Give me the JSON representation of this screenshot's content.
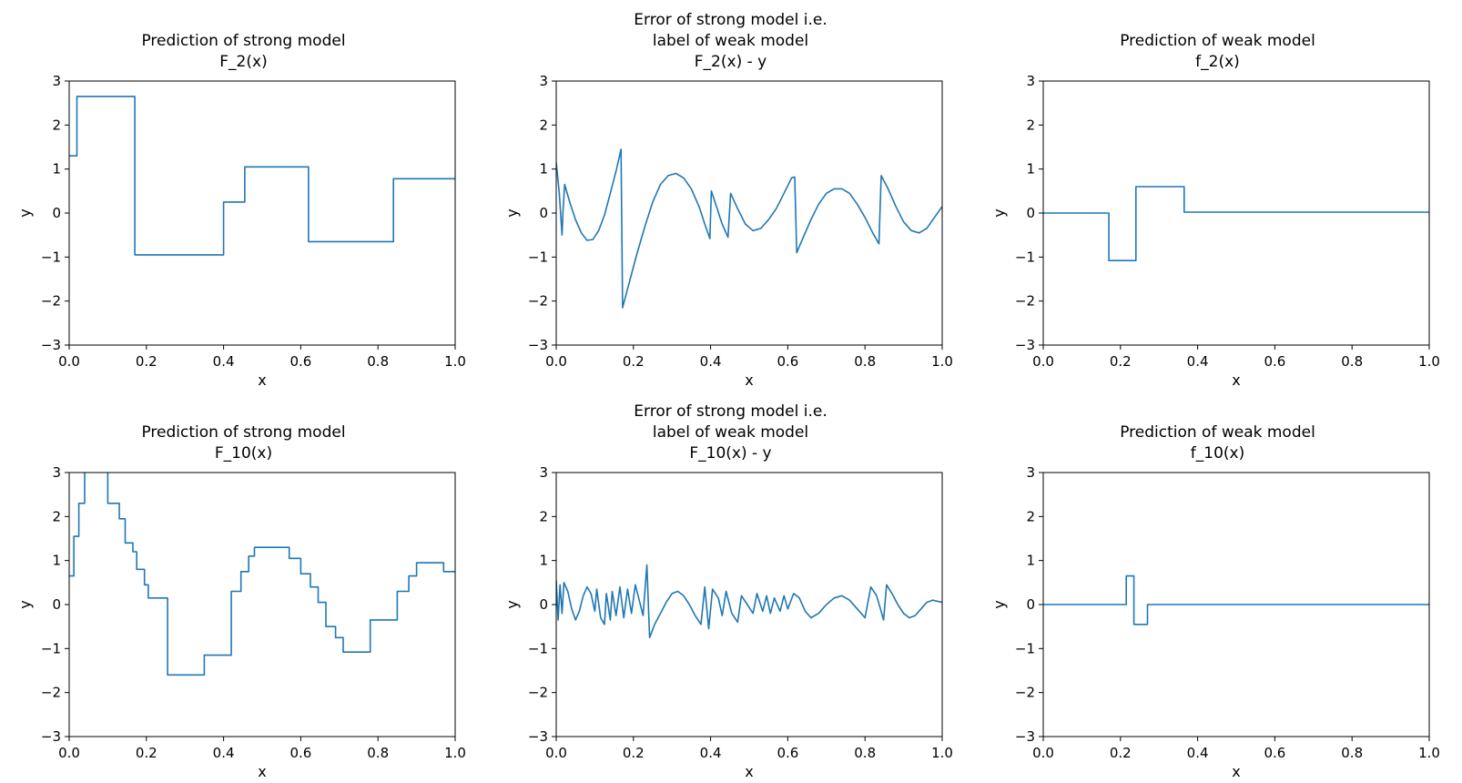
{
  "figure": {
    "background": "#ffffff",
    "line_color": "#1f77b4",
    "axis_color": "#000000"
  },
  "chart_data": [
    {
      "id": "strong-f2",
      "type": "step",
      "title_lines": [
        "Prediction of strong model",
        "F_2(x)"
      ],
      "xlabel": "x",
      "ylabel": "y",
      "xlim": [
        0.0,
        1.0
      ],
      "ylim": [
        -3,
        3
      ],
      "xticks": [
        0.0,
        0.2,
        0.4,
        0.6,
        0.8,
        1.0
      ],
      "yticks": [
        -3,
        -2,
        -1,
        0,
        1,
        2,
        3
      ],
      "segments": [
        [
          0.0,
          0.02,
          1.3
        ],
        [
          0.02,
          0.17,
          2.65
        ],
        [
          0.17,
          0.4,
          -0.95
        ],
        [
          0.4,
          0.455,
          0.25
        ],
        [
          0.455,
          0.62,
          1.05
        ],
        [
          0.62,
          0.84,
          -0.65
        ],
        [
          0.84,
          1.0,
          0.78
        ]
      ]
    },
    {
      "id": "error-f2",
      "type": "line",
      "title_lines": [
        "Error of strong model i.e.",
        "label of weak model",
        "F_2(x) - y"
      ],
      "xlabel": "x",
      "ylabel": "y",
      "xlim": [
        0.0,
        1.0
      ],
      "ylim": [
        -3,
        3
      ],
      "xticks": [
        0.0,
        0.2,
        0.4,
        0.6,
        0.8,
        1.0
      ],
      "yticks": [
        -3,
        -2,
        -1,
        0,
        1,
        2,
        3
      ],
      "points": [
        [
          0.0,
          1.15
        ],
        [
          0.008,
          0.45
        ],
        [
          0.015,
          -0.5
        ],
        [
          0.018,
          0.1
        ],
        [
          0.022,
          0.65
        ],
        [
          0.035,
          0.25
        ],
        [
          0.05,
          -0.15
        ],
        [
          0.065,
          -0.45
        ],
        [
          0.08,
          -0.62
        ],
        [
          0.095,
          -0.6
        ],
        [
          0.11,
          -0.4
        ],
        [
          0.125,
          -0.05
        ],
        [
          0.14,
          0.45
        ],
        [
          0.155,
          0.95
        ],
        [
          0.168,
          1.45
        ],
        [
          0.172,
          -2.15
        ],
        [
          0.19,
          -1.55
        ],
        [
          0.21,
          -0.9
        ],
        [
          0.23,
          -0.3
        ],
        [
          0.25,
          0.25
        ],
        [
          0.27,
          0.65
        ],
        [
          0.29,
          0.85
        ],
        [
          0.31,
          0.9
        ],
        [
          0.33,
          0.8
        ],
        [
          0.35,
          0.55
        ],
        [
          0.37,
          0.15
        ],
        [
          0.385,
          -0.25
        ],
        [
          0.398,
          -0.58
        ],
        [
          0.402,
          0.5
        ],
        [
          0.415,
          0.15
        ],
        [
          0.43,
          -0.25
        ],
        [
          0.445,
          -0.55
        ],
        [
          0.452,
          0.45
        ],
        [
          0.47,
          0.1
        ],
        [
          0.49,
          -0.25
        ],
        [
          0.51,
          -0.4
        ],
        [
          0.53,
          -0.35
        ],
        [
          0.55,
          -0.15
        ],
        [
          0.57,
          0.1
        ],
        [
          0.59,
          0.45
        ],
        [
          0.61,
          0.8
        ],
        [
          0.618,
          0.82
        ],
        [
          0.623,
          -0.9
        ],
        [
          0.64,
          -0.55
        ],
        [
          0.66,
          -0.15
        ],
        [
          0.68,
          0.2
        ],
        [
          0.7,
          0.45
        ],
        [
          0.72,
          0.55
        ],
        [
          0.74,
          0.55
        ],
        [
          0.76,
          0.45
        ],
        [
          0.78,
          0.2
        ],
        [
          0.8,
          -0.1
        ],
        [
          0.82,
          -0.45
        ],
        [
          0.836,
          -0.7
        ],
        [
          0.842,
          0.85
        ],
        [
          0.86,
          0.55
        ],
        [
          0.88,
          0.15
        ],
        [
          0.9,
          -0.2
        ],
        [
          0.92,
          -0.4
        ],
        [
          0.94,
          -0.45
        ],
        [
          0.96,
          -0.35
        ],
        [
          0.98,
          -0.1
        ],
        [
          1.0,
          0.15
        ]
      ]
    },
    {
      "id": "weak-f2",
      "type": "step",
      "title_lines": [
        "Prediction of weak model",
        "f_2(x)"
      ],
      "xlabel": "x",
      "ylabel": "y",
      "xlim": [
        0.0,
        1.0
      ],
      "ylim": [
        -3,
        3
      ],
      "xticks": [
        0.0,
        0.2,
        0.4,
        0.6,
        0.8,
        1.0
      ],
      "yticks": [
        -3,
        -2,
        -1,
        0,
        1,
        2,
        3
      ],
      "segments": [
        [
          0.0,
          0.17,
          0.0
        ],
        [
          0.17,
          0.24,
          -1.08
        ],
        [
          0.24,
          0.365,
          0.6
        ],
        [
          0.365,
          1.0,
          0.02
        ]
      ]
    },
    {
      "id": "strong-f10",
      "type": "step",
      "title_lines": [
        "Prediction of strong model",
        "F_10(x)"
      ],
      "xlabel": "x",
      "ylabel": "y",
      "xlim": [
        0.0,
        1.0
      ],
      "ylim": [
        -3,
        3
      ],
      "xticks": [
        0.0,
        0.2,
        0.4,
        0.6,
        0.8,
        1.0
      ],
      "yticks": [
        -3,
        -2,
        -1,
        0,
        1,
        2,
        3
      ],
      "segments": [
        [
          0.0,
          0.012,
          0.65
        ],
        [
          0.012,
          0.025,
          1.55
        ],
        [
          0.025,
          0.04,
          2.3
        ],
        [
          0.04,
          0.1,
          3.06
        ],
        [
          0.1,
          0.13,
          2.3
        ],
        [
          0.13,
          0.145,
          1.95
        ],
        [
          0.145,
          0.165,
          1.4
        ],
        [
          0.165,
          0.175,
          1.2
        ],
        [
          0.175,
          0.195,
          0.8
        ],
        [
          0.195,
          0.205,
          0.45
        ],
        [
          0.205,
          0.255,
          0.15
        ],
        [
          0.255,
          0.35,
          -1.6
        ],
        [
          0.35,
          0.42,
          -1.15
        ],
        [
          0.42,
          0.445,
          0.3
        ],
        [
          0.445,
          0.465,
          0.75
        ],
        [
          0.465,
          0.48,
          1.1
        ],
        [
          0.48,
          0.57,
          1.3
        ],
        [
          0.57,
          0.6,
          1.05
        ],
        [
          0.6,
          0.625,
          0.7
        ],
        [
          0.625,
          0.645,
          0.4
        ],
        [
          0.645,
          0.665,
          0.05
        ],
        [
          0.665,
          0.69,
          -0.5
        ],
        [
          0.69,
          0.71,
          -0.75
        ],
        [
          0.71,
          0.78,
          -1.08
        ],
        [
          0.78,
          0.85,
          -0.35
        ],
        [
          0.85,
          0.88,
          0.3
        ],
        [
          0.88,
          0.9,
          0.65
        ],
        [
          0.9,
          0.97,
          0.95
        ],
        [
          0.97,
          1.0,
          0.75
        ]
      ]
    },
    {
      "id": "error-f10",
      "type": "line",
      "title_lines": [
        "Error of strong model i.e.",
        "label of weak model",
        "F_10(x) - y"
      ],
      "xlabel": "x",
      "ylabel": "y",
      "xlim": [
        0.0,
        1.0
      ],
      "ylim": [
        -3,
        3
      ],
      "xticks": [
        0.0,
        0.2,
        0.4,
        0.6,
        0.8,
        1.0
      ],
      "yticks": [
        -3,
        -2,
        -1,
        0,
        1,
        2,
        3
      ],
      "points": [
        [
          0.0,
          0.55
        ],
        [
          0.005,
          -0.35
        ],
        [
          0.01,
          0.45
        ],
        [
          0.015,
          -0.2
        ],
        [
          0.02,
          0.5
        ],
        [
          0.03,
          0.3
        ],
        [
          0.04,
          -0.1
        ],
        [
          0.05,
          -0.35
        ],
        [
          0.06,
          -0.15
        ],
        [
          0.07,
          0.2
        ],
        [
          0.08,
          0.4
        ],
        [
          0.09,
          0.25
        ],
        [
          0.1,
          -0.15
        ],
        [
          0.105,
          0.35
        ],
        [
          0.115,
          -0.3
        ],
        [
          0.125,
          -0.45
        ],
        [
          0.13,
          0.25
        ],
        [
          0.14,
          -0.35
        ],
        [
          0.145,
          0.3
        ],
        [
          0.155,
          -0.25
        ],
        [
          0.165,
          0.4
        ],
        [
          0.175,
          -0.3
        ],
        [
          0.185,
          0.35
        ],
        [
          0.195,
          -0.2
        ],
        [
          0.205,
          0.45
        ],
        [
          0.215,
          0.1
        ],
        [
          0.225,
          -0.25
        ],
        [
          0.235,
          0.9
        ],
        [
          0.242,
          -0.75
        ],
        [
          0.255,
          -0.45
        ],
        [
          0.27,
          -0.2
        ],
        [
          0.285,
          0.05
        ],
        [
          0.3,
          0.25
        ],
        [
          0.315,
          0.3
        ],
        [
          0.33,
          0.2
        ],
        [
          0.345,
          0.0
        ],
        [
          0.36,
          -0.25
        ],
        [
          0.375,
          -0.45
        ],
        [
          0.385,
          0.4
        ],
        [
          0.395,
          -0.55
        ],
        [
          0.405,
          0.35
        ],
        [
          0.42,
          0.15
        ],
        [
          0.43,
          -0.25
        ],
        [
          0.44,
          0.3
        ],
        [
          0.455,
          -0.2
        ],
        [
          0.47,
          -0.4
        ],
        [
          0.48,
          0.2
        ],
        [
          0.495,
          0.0
        ],
        [
          0.51,
          -0.2
        ],
        [
          0.52,
          0.25
        ],
        [
          0.535,
          -0.15
        ],
        [
          0.545,
          0.2
        ],
        [
          0.555,
          -0.2
        ],
        [
          0.565,
          0.15
        ],
        [
          0.58,
          -0.15
        ],
        [
          0.59,
          0.2
        ],
        [
          0.6,
          -0.1
        ],
        [
          0.615,
          0.25
        ],
        [
          0.63,
          0.15
        ],
        [
          0.645,
          -0.15
        ],
        [
          0.66,
          -0.3
        ],
        [
          0.68,
          -0.2
        ],
        [
          0.7,
          0.0
        ],
        [
          0.72,
          0.15
        ],
        [
          0.74,
          0.2
        ],
        [
          0.76,
          0.1
        ],
        [
          0.78,
          -0.1
        ],
        [
          0.8,
          -0.3
        ],
        [
          0.815,
          0.4
        ],
        [
          0.83,
          0.2
        ],
        [
          0.84,
          -0.1
        ],
        [
          0.848,
          -0.35
        ],
        [
          0.856,
          0.45
        ],
        [
          0.87,
          0.25
        ],
        [
          0.885,
          0.0
        ],
        [
          0.9,
          -0.2
        ],
        [
          0.915,
          -0.3
        ],
        [
          0.93,
          -0.25
        ],
        [
          0.945,
          -0.1
        ],
        [
          0.96,
          0.05
        ],
        [
          0.975,
          0.1
        ],
        [
          1.0,
          0.05
        ]
      ]
    },
    {
      "id": "weak-f10",
      "type": "step",
      "title_lines": [
        "Prediction of weak model",
        "f_10(x)"
      ],
      "xlabel": "x",
      "ylabel": "y",
      "xlim": [
        0.0,
        1.0
      ],
      "ylim": [
        -3,
        3
      ],
      "xticks": [
        0.0,
        0.2,
        0.4,
        0.6,
        0.8,
        1.0
      ],
      "yticks": [
        -3,
        -2,
        -1,
        0,
        1,
        2,
        3
      ],
      "segments": [
        [
          0.0,
          0.215,
          0.0
        ],
        [
          0.215,
          0.235,
          0.65
        ],
        [
          0.235,
          0.27,
          -0.45
        ],
        [
          0.27,
          1.0,
          0.0
        ]
      ]
    }
  ]
}
